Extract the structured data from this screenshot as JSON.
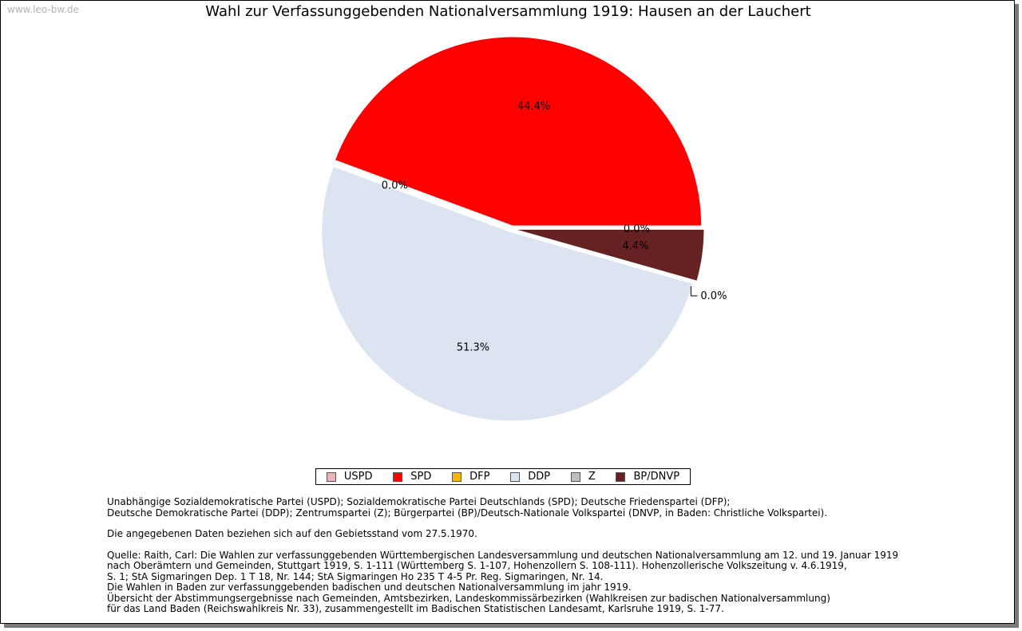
{
  "watermark": "www.leo-bw.de",
  "chart_data": {
    "type": "pie",
    "title": "Wahl zur Verfassunggebenden Nationalversammlung 1919: Hausen an der Lauchert",
    "slices": [
      {
        "name": "USPD",
        "value": 0.0,
        "label": "0.0%",
        "color": "#e8b4b8"
      },
      {
        "name": "SPD",
        "value": 44.4,
        "label": "44.4%",
        "color": "#ff0000"
      },
      {
        "name": "DFP",
        "value": 0.0,
        "label": "0.0%",
        "color": "#f5b800"
      },
      {
        "name": "DDP",
        "value": 51.3,
        "label": "51.3%",
        "color": "#dbe4f0"
      },
      {
        "name": "Z",
        "value": 0.0,
        "label": "0.0%",
        "color": "#bebebe"
      },
      {
        "name": "BP/DNVP",
        "value": 4.4,
        "label": "4.4%",
        "color": "#662222"
      }
    ],
    "legend_position": "bottom-center"
  },
  "notes": {
    "line1": "Unabhängige Sozialdemokratische Partei (USPD); Sozialdemokratische Partei Deutschlands (SPD); Deutsche Friedenspartei (DFP);",
    "line2": "Deutsche Demokratische Partei (DDP); Zentrumspartei (Z); Bürgerpartei (BP)/Deutsch-Nationale Volkspartei (DNVP, in Baden: Christliche Volkspartei).",
    "line3": "Die angegebenen Daten beziehen sich auf den Gebietsstand vom 27.5.1970.",
    "line4": "Quelle: Raith, Carl: Die Wahlen zur verfassunggebenden Württembergischen Landesversammlung und deutschen Nationalversammlung am 12. und 19. Januar 1919",
    "line5": "nach Oberämtern und Gemeinden, Stuttgart 1919, S. 1-111 (Württemberg S. 1-107, Hohenzollern S. 108-111). Hohenzollerische Volkszeitung v. 4.6.1919,",
    "line6": "S. 1; StA Sigmaringen Dep. 1 T 18, Nr. 144; StA Sigmaringen Ho 235 T 4-5 Pr. Reg. Sigmaringen, Nr. 14.",
    "line7": "Die Wahlen in Baden zur verfassunggebenden badischen und deutschen Nationalversammlung im jahr 1919.",
    "line8": "Übersicht der Abstimmungsergebnisse nach Gemeinden, Amtsbezirken, Landeskommissärbezirken (Wahlkreisen zur badischen Nationalversammlung)",
    "line9": "für das Land Baden (Reichswahlkreis Nr. 33), zusammengestellt im Badischen Statistischen Landesamt, Karlsruhe 1919, S. 1-77."
  }
}
